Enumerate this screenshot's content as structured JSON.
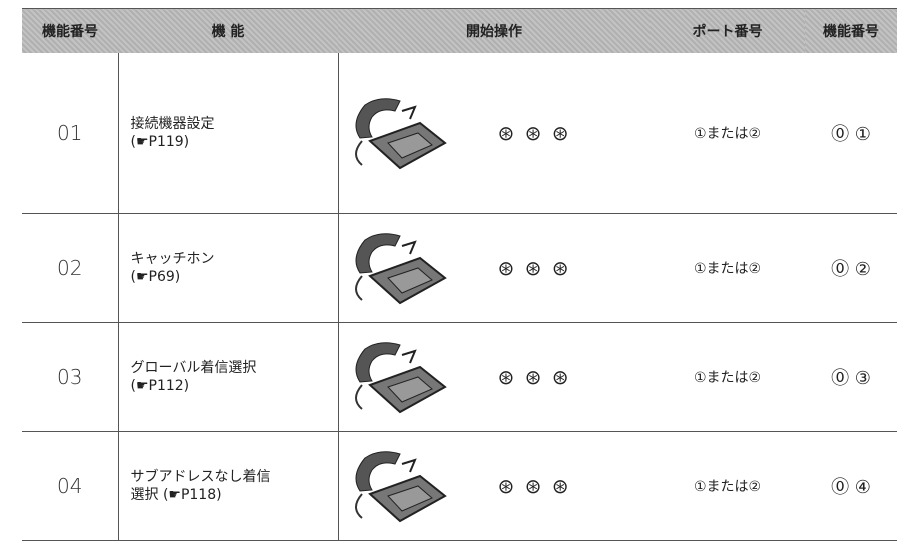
{
  "table": {
    "headers": [
      "機能番号",
      "機 能",
      "開始操作",
      "ポート番号",
      "機能番号"
    ],
    "rows": [
      {
        "number": "01",
        "lines": [
          "接続機器設定",
          "(☛P119)"
        ],
        "keys": "⊛ ⊛ ⊛",
        "port": "①または②",
        "code": "⓪ ①"
      },
      {
        "number": "02",
        "lines": [
          "キャッチホン",
          "(☛P69)"
        ],
        "keys": "⊛ ⊛ ⊛",
        "port": "①または②",
        "code": "⓪ ②"
      },
      {
        "number": "03",
        "lines": [
          "グローバル着信選択",
          "(☛P112)"
        ],
        "keys": "⊛ ⊛ ⊛",
        "port": "①または②",
        "code": "⓪ ③"
      },
      {
        "number": "04",
        "lines": [
          "サブアドレスなし着信",
          "選択 (☛P118)"
        ],
        "keys": "⊛ ⊛ ⊛",
        "port": "①または②",
        "code": "⓪ ④"
      }
    ]
  }
}
